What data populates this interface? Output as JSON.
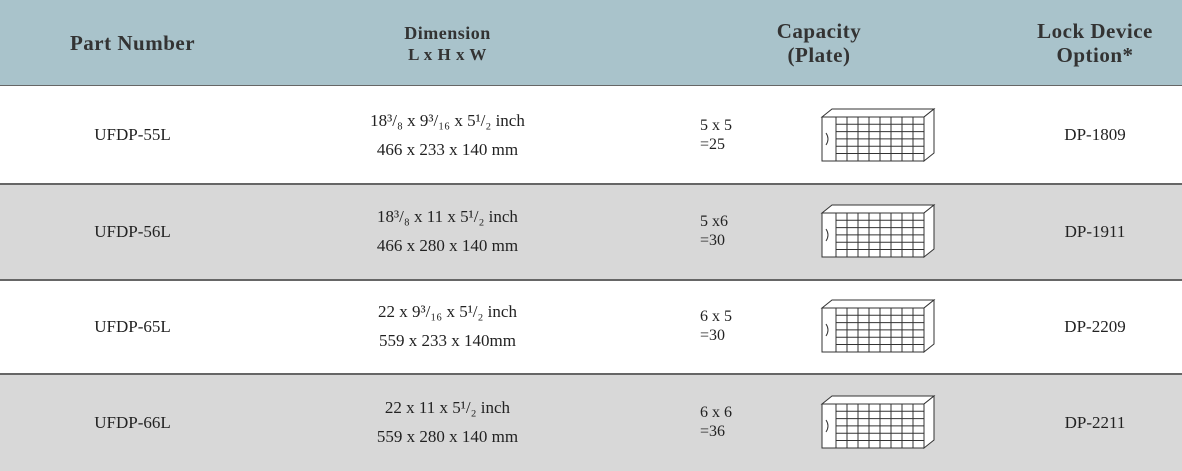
{
  "table": {
    "header": {
      "part_number": "Part Number",
      "dimension": [
        "Dimension",
        "L x H x W"
      ],
      "capacity": [
        "Capacity",
        "(Plate)"
      ],
      "lock": [
        "Lock Device",
        "Option*"
      ]
    },
    "rows": [
      {
        "part": "UFDP-55L",
        "dimension": [
          "18³/₈ x 9³/₁₆ x 5¹/₂ inch",
          "466 x 233 x 140 mm"
        ],
        "capacity": [
          "5 x 5",
          "=25"
        ],
        "lock": "DP-1809"
      },
      {
        "part": "UFDP-56L",
        "dimension": [
          "18³/₈ x 11 x 5¹/₂ inch",
          "466 x 280 x 140 mm"
        ],
        "capacity": [
          "5 x6",
          "=30"
        ],
        "lock": "DP-1911"
      },
      {
        "part": "UFDP-65L",
        "dimension": [
          "22 x 9³/₁₆ x 5¹/₂ inch",
          "559 x 233 x 140mm"
        ],
        "capacity": [
          "6 x 5",
          "=30"
        ],
        "lock": "DP-2209"
      },
      {
        "part": "UFDP-66L",
        "dimension": [
          "22 x 11 x 5¹/₂ inch",
          "559 x 280 x 140 mm"
        ],
        "capacity": [
          "6 x 6",
          "=36"
        ],
        "lock": "DP-2211"
      }
    ]
  }
}
